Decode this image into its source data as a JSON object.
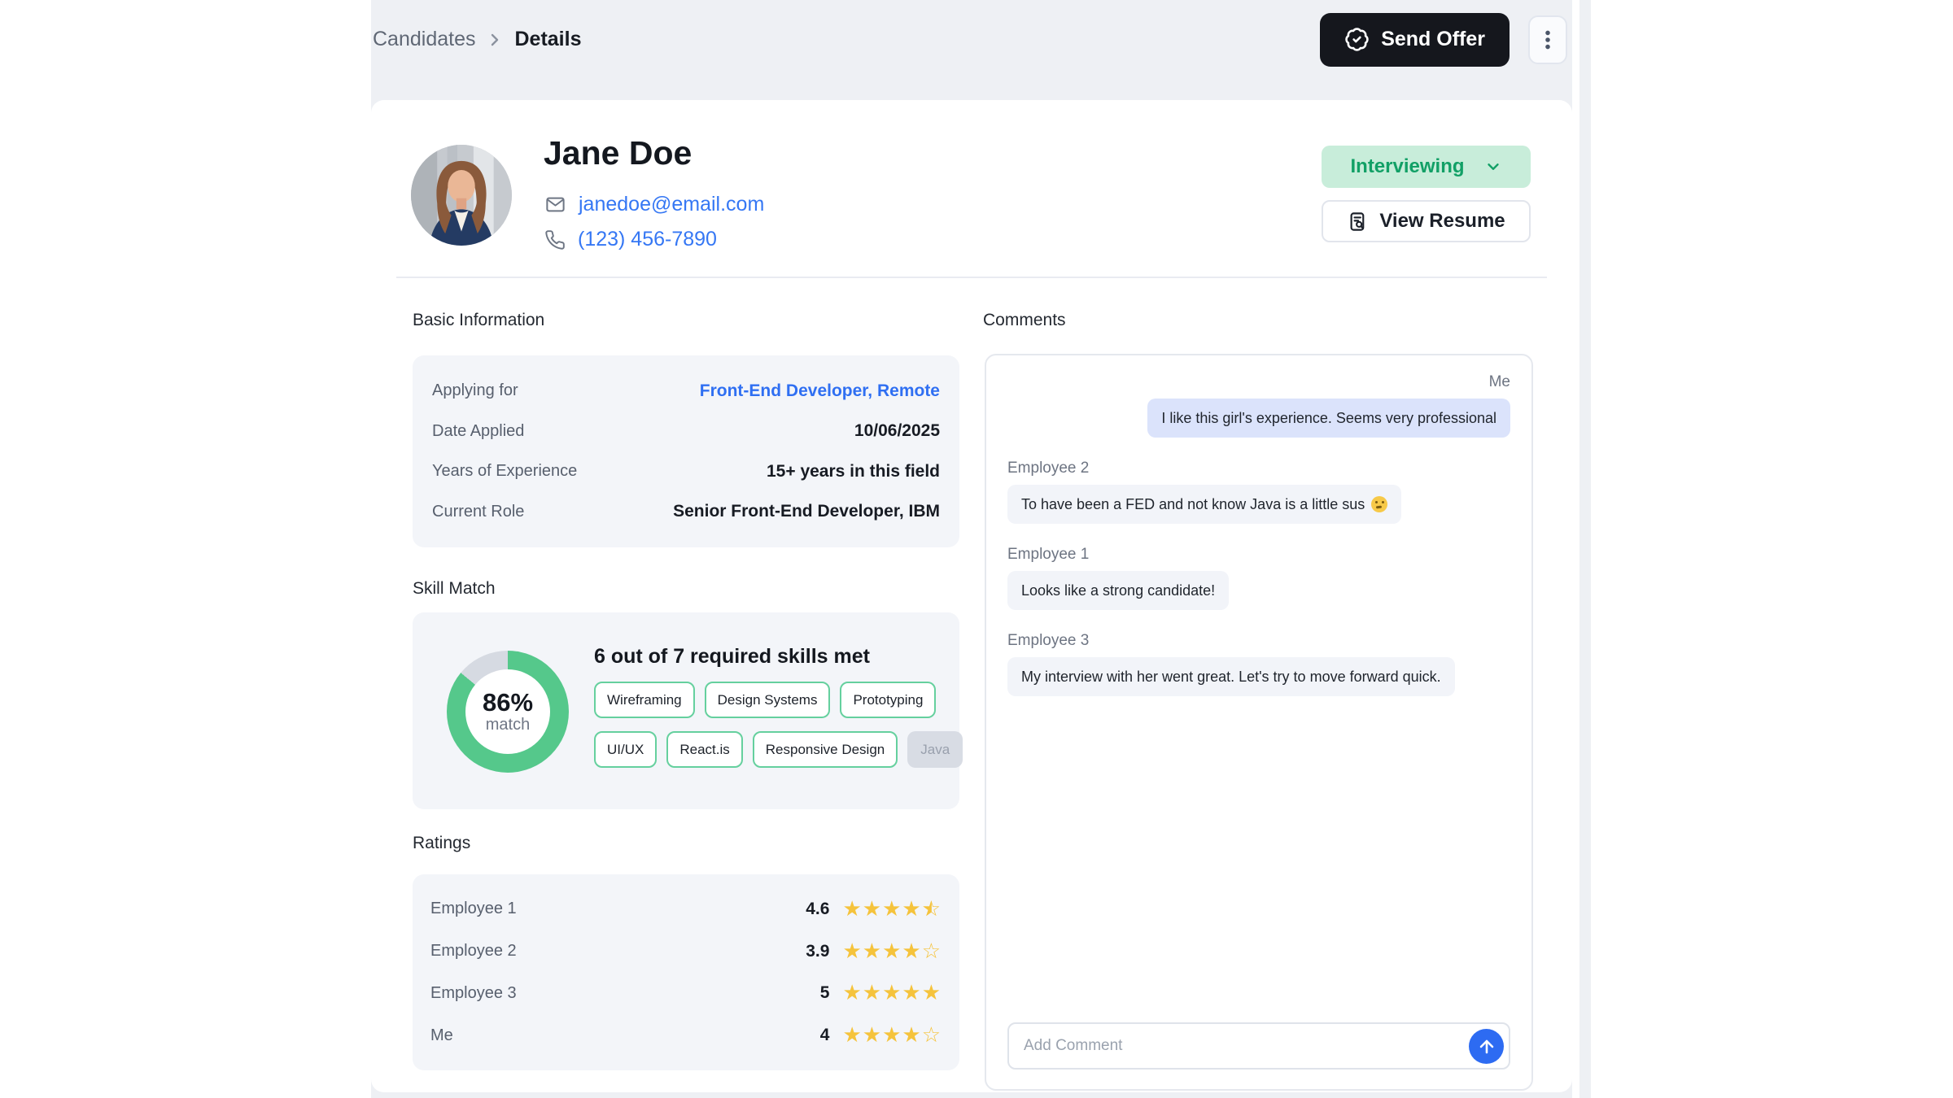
{
  "breadcrumb": {
    "parent": "Candidates",
    "current": "Details"
  },
  "topbar": {
    "send_offer_label": "Send Offer"
  },
  "profile": {
    "name": "Jane Doe",
    "email": "janedoe@email.com",
    "phone": "(123) 456-7890",
    "status_label": "Interviewing",
    "view_resume_label": "View Resume"
  },
  "basic_info": {
    "title": "Basic Information",
    "rows": [
      {
        "label": "Applying for",
        "value": "Front-End Developer, Remote",
        "is_link": true
      },
      {
        "label": "Date Applied",
        "value": "10/06/2025",
        "is_link": false
      },
      {
        "label": "Years of Experience",
        "value": "15+ years in this field",
        "is_link": false
      },
      {
        "label": "Current Role",
        "value": "Senior Front-End Developer, IBM",
        "is_link": false
      }
    ]
  },
  "skill_match": {
    "title": "Skill Match",
    "percent_value": 86,
    "percent_label": "86%",
    "percent_sub": "match",
    "headline": "6 out of 7 required skills met",
    "skills": [
      {
        "name": "Wireframing",
        "met": true
      },
      {
        "name": "Design Systems",
        "met": true
      },
      {
        "name": "Prototyping",
        "met": true
      },
      {
        "name": "UI/UX",
        "met": true
      },
      {
        "name": "React.is",
        "met": true
      },
      {
        "name": "Responsive Design",
        "met": true
      },
      {
        "name": "Java",
        "met": false
      }
    ]
  },
  "ratings": {
    "title": "Ratings",
    "rows": [
      {
        "name": "Employee 1",
        "display": "4.6",
        "value": 4.6
      },
      {
        "name": "Employee 2",
        "display": "3.9",
        "value": 3.9
      },
      {
        "name": "Employee 3",
        "display": "5",
        "value": 5
      },
      {
        "name": "Me",
        "display": "4",
        "value": 4
      }
    ]
  },
  "comments": {
    "title": "Comments",
    "items": [
      {
        "author": "Me",
        "side": "right",
        "text": "I like this girl's experience. Seems very professional"
      },
      {
        "author": "Employee 2",
        "side": "left",
        "text": "To have been a FED and not know Java is a little sus 🤔"
      },
      {
        "author": "Employee 1",
        "side": "left",
        "text": "Looks like a strong candidate!"
      },
      {
        "author": "Employee 3",
        "side": "left",
        "text": "My interview with her went great. Let's try to move forward quick."
      }
    ],
    "input_placeholder": "Add Comment"
  },
  "colors": {
    "donut_green": "#55c88b",
    "donut_gray": "#d6dae2",
    "status_green": "#12a066",
    "status_bg": "#c8edda",
    "link_blue": "#3577f4",
    "star_amber": "#f5c33c",
    "me_bubble": "#dbe3fb",
    "send_comment_blue": "#2d6bf2",
    "send_offer_black": "#15171d"
  }
}
